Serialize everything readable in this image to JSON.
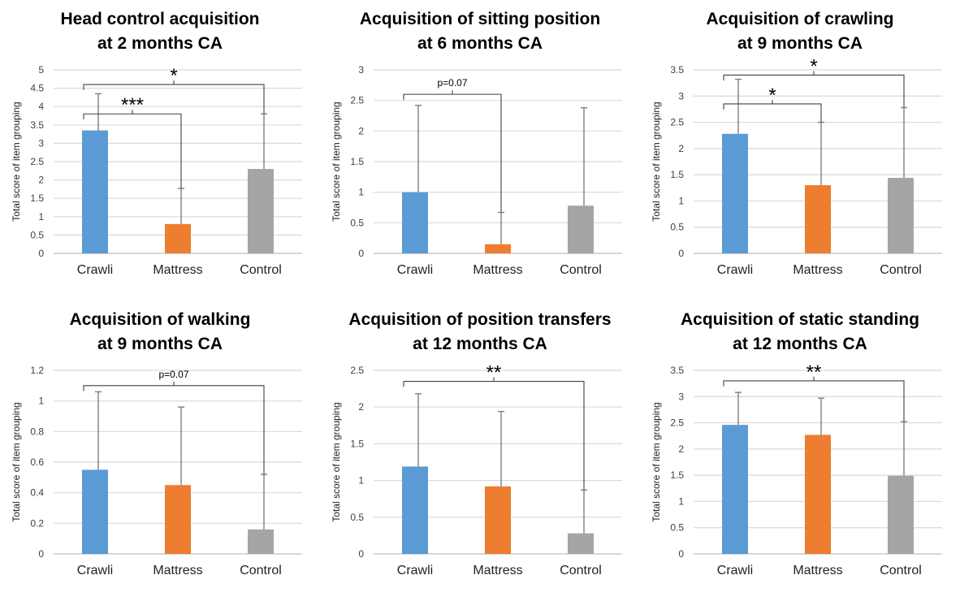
{
  "colors": {
    "crawli": "#5B9BD5",
    "mattress": "#ED7D31",
    "control": "#A5A5A5",
    "grid": "#D9D9D9",
    "errorbar": "#7F7F7F"
  },
  "chart_data": [
    {
      "type": "bar",
      "title_lines": [
        "Head control acquisition",
        "at 2 months CA"
      ],
      "ylabel": "Total score of item grouping",
      "categories": [
        "Crawli",
        "Mattress",
        "Control"
      ],
      "values": [
        3.35,
        0.8,
        2.3
      ],
      "errors": [
        1.0,
        0.97,
        1.5
      ],
      "ylim": [
        0,
        5
      ],
      "ystep": 0.5,
      "ticks": [
        "0",
        "0.5",
        "1",
        "1.5",
        "2",
        "2.5",
        "3",
        "3.5",
        "4",
        "4.5",
        "5"
      ],
      "grid": true,
      "significance": [
        {
          "from": 0,
          "to": 1,
          "label": "***",
          "level": 3.8
        },
        {
          "from": 0,
          "to": 2,
          "label": "*",
          "level": 4.6
        }
      ]
    },
    {
      "type": "bar",
      "title_lines": [
        "Acquisition of sitting position",
        "at 6 months CA"
      ],
      "ylabel": "Total score of item grouping",
      "categories": [
        "Crawli",
        "Mattress",
        "Control"
      ],
      "values": [
        1.0,
        0.15,
        0.78
      ],
      "errors": [
        1.42,
        0.52,
        1.6
      ],
      "ylim": [
        0,
        3
      ],
      "ystep": 0.5,
      "ticks": [
        "0",
        "0.5",
        "1",
        "1.5",
        "2",
        "2.5",
        "3"
      ],
      "grid": true,
      "significance": [
        {
          "from": 0,
          "to": 1,
          "label": "p=0.07",
          "level": 2.6
        }
      ]
    },
    {
      "type": "bar",
      "title_lines": [
        "Acquisition of crawling",
        "at 9 months CA"
      ],
      "ylabel": "Total score of item grouping",
      "categories": [
        "Crawli",
        "Mattress",
        "Control"
      ],
      "values": [
        2.28,
        1.3,
        1.44
      ],
      "errors": [
        1.04,
        1.2,
        1.34
      ],
      "ylim": [
        0,
        3.5
      ],
      "ystep": 0.5,
      "ticks": [
        "0",
        "0.5",
        "1",
        "1.5",
        "2",
        "2.5",
        "3",
        "3.5"
      ],
      "grid": true,
      "significance": [
        {
          "from": 0,
          "to": 1,
          "label": "*",
          "level": 2.85
        },
        {
          "from": 0,
          "to": 2,
          "label": "*",
          "level": 3.4
        }
      ]
    },
    {
      "type": "bar",
      "title_lines": [
        "Acquisition of walking",
        "at 9 months CA"
      ],
      "ylabel": "Total score of item grouping",
      "categories": [
        "Crawli",
        "Mattress",
        "Control"
      ],
      "values": [
        0.55,
        0.45,
        0.16
      ],
      "errors": [
        0.51,
        0.51,
        0.36
      ],
      "ylim": [
        0,
        1.2
      ],
      "ystep": 0.2,
      "ticks": [
        "0",
        "0.2",
        "0.4",
        "0.6",
        "0.8",
        "1",
        "1.2"
      ],
      "grid": true,
      "significance": [
        {
          "from": 0,
          "to": 2,
          "label": "p=0.07",
          "level": 1.1
        }
      ]
    },
    {
      "type": "bar",
      "title_lines": [
        "Acquisition of position transfers",
        "at 12 months CA"
      ],
      "ylabel": "Total score of item grouping",
      "categories": [
        "Crawli",
        "Mattress",
        "Control"
      ],
      "values": [
        1.19,
        0.92,
        0.28
      ],
      "errors": [
        0.99,
        1.02,
        0.59
      ],
      "ylim": [
        0,
        2.5
      ],
      "ystep": 0.5,
      "ticks": [
        "0",
        "0.5",
        "1",
        "1.5",
        "2",
        "2.5"
      ],
      "grid": true,
      "significance": [
        {
          "from": 0,
          "to": 2,
          "label": "**",
          "level": 2.35
        }
      ]
    },
    {
      "type": "bar",
      "title_lines": [
        "Acquisition of static standing",
        "at 12 months CA"
      ],
      "ylabel": "Total score of item grouping",
      "categories": [
        "Crawli",
        "Mattress",
        "Control"
      ],
      "values": [
        2.46,
        2.27,
        1.49
      ],
      "errors": [
        0.62,
        0.7,
        1.03
      ],
      "ylim": [
        0,
        3.5
      ],
      "ystep": 0.5,
      "ticks": [
        "0",
        "0.5",
        "1",
        "1.5",
        "2",
        "2.5",
        "3",
        "3.5"
      ],
      "grid": true,
      "significance": [
        {
          "from": 0,
          "to": 2,
          "label": "**",
          "level": 3.3
        }
      ]
    }
  ]
}
